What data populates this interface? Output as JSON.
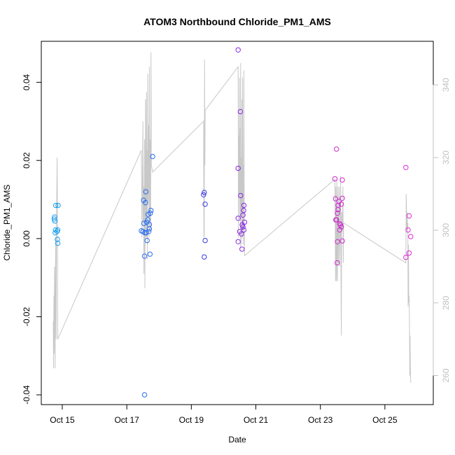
{
  "chart_data": {
    "type": "scatter",
    "title": "ATOM3 Northbound Chloride_PM1_AMS",
    "xlabel": "Date",
    "ylabel": "Chloride_PM1_AMS",
    "xlim": [
      14.35,
      26.5
    ],
    "ylim": [
      -0.0425,
      0.0505
    ],
    "y2lim": [
      252,
      352
    ],
    "x_ticks": [
      {
        "value": 15,
        "label": "Oct 15"
      },
      {
        "value": 17,
        "label": "Oct 17"
      },
      {
        "value": 19,
        "label": "Oct 19"
      },
      {
        "value": 21,
        "label": "Oct 21"
      },
      {
        "value": 23,
        "label": "Oct 23"
      },
      {
        "value": 25,
        "label": "Oct 25"
      }
    ],
    "y_ticks": [
      {
        "value": -0.04,
        "label": "-0.04"
      },
      {
        "value": -0.02,
        "label": "-0.02"
      },
      {
        "value": 0.0,
        "label": "0.00"
      },
      {
        "value": 0.02,
        "label": "0.02"
      },
      {
        "value": 0.04,
        "label": "0.04"
      }
    ],
    "y2_ticks": [
      {
        "value": 260,
        "label": "260"
      },
      {
        "value": 280,
        "label": "280"
      },
      {
        "value": 300,
        "label": "300"
      },
      {
        "value": 320,
        "label": "320"
      },
      {
        "value": 340,
        "label": "340"
      }
    ],
    "colors": {
      "line": "#c8c8c8",
      "axis": "#000000",
      "right_axis": "#c0c0c0"
    },
    "points": [
      [
        14.75,
        0.005,
        "#1aa0f0"
      ],
      [
        14.76,
        0.0055,
        "#1aa0f0"
      ],
      [
        14.77,
        0.0045,
        "#1aa0f0"
      ],
      [
        14.78,
        0.0015,
        "#1aa0f0"
      ],
      [
        14.79,
        0.0022,
        "#1aa0f0"
      ],
      [
        14.8,
        0.0085,
        "#1aa0f0"
      ],
      [
        14.84,
        0.0018,
        "#1aa0f0"
      ],
      [
        14.85,
        -0.0002,
        "#1aa0f0"
      ],
      [
        14.86,
        -0.0012,
        "#1aa0f0"
      ],
      [
        14.87,
        0.0085,
        "#1aa0f0"
      ],
      [
        14.86,
        0.0022,
        "#1aa0f0"
      ],
      [
        17.45,
        0.002,
        "#2a6ef0"
      ],
      [
        17.5,
        0.0018,
        "#2a6ef0"
      ],
      [
        17.52,
        0.0098,
        "#2a6ef0"
      ],
      [
        17.53,
        0.0039,
        "#2a6ef0"
      ],
      [
        17.55,
        -0.0045,
        "#2a6ef0"
      ],
      [
        17.55,
        -0.04,
        "#2a6ef0"
      ],
      [
        17.56,
        0.0015,
        "#2a6ef0"
      ],
      [
        17.58,
        0.0092,
        "#2a6ef0"
      ],
      [
        17.59,
        0.012,
        "#2a6ef0"
      ],
      [
        17.6,
        0.0015,
        "#2a6ef0"
      ],
      [
        17.62,
        0.0042,
        "#2a6ef0"
      ],
      [
        17.63,
        -0.0005,
        "#2a6ef0"
      ],
      [
        17.65,
        0.0048,
        "#2a6ef0"
      ],
      [
        17.66,
        0.0062,
        "#2a6ef0"
      ],
      [
        17.68,
        0.0018,
        "#2a6ef0"
      ],
      [
        17.7,
        0.0036,
        "#2a6ef0"
      ],
      [
        17.7,
        0.0025,
        "#2a6ef0"
      ],
      [
        17.72,
        -0.004,
        "#2a6ef0"
      ],
      [
        17.73,
        0.0065,
        "#2a6ef0"
      ],
      [
        17.75,
        0.0072,
        "#2a6ef0"
      ],
      [
        17.8,
        0.021,
        "#2a6ef0"
      ],
      [
        19.38,
        0.0112,
        "#3a38e8"
      ],
      [
        19.4,
        0.0118,
        "#3a38e8"
      ],
      [
        19.4,
        -0.0047,
        "#3a38e8"
      ],
      [
        19.43,
        -0.0005,
        "#3a38e8"
      ],
      [
        19.43,
        0.0088,
        "#3a38e8"
      ],
      [
        20.45,
        0.0483,
        "#8a2ae0"
      ],
      [
        20.45,
        0.018,
        "#8a2ae0"
      ],
      [
        20.45,
        0.0052,
        "#8a2ae0"
      ],
      [
        20.45,
        -0.0008,
        "#8a2ae0"
      ],
      [
        20.5,
        0.0018,
        "#8a2ae0"
      ],
      [
        20.52,
        0.0325,
        "#8a2ae0"
      ],
      [
        20.53,
        0.011,
        "#8a2ae0"
      ],
      [
        20.55,
        0.0012,
        "#8a2ae0"
      ],
      [
        20.57,
        -0.0027,
        "#8a2ae0"
      ],
      [
        20.58,
        0.0035,
        "#8a2ae0"
      ],
      [
        20.6,
        0.006,
        "#8a2ae0"
      ],
      [
        20.6,
        0.003,
        "#8a2ae0"
      ],
      [
        20.62,
        0.0072,
        "#8a2ae0"
      ],
      [
        20.63,
        0.0085,
        "#8a2ae0"
      ],
      [
        20.65,
        0.0042,
        "#8a2ae0"
      ],
      [
        20.63,
        0.0022,
        "#8a2ae0"
      ],
      [
        23.45,
        0.0153,
        "#d02ad0"
      ],
      [
        23.47,
        0.0102,
        "#d02ad0"
      ],
      [
        23.48,
        0.0048,
        "#d02ad0"
      ],
      [
        23.5,
        0.0048,
        "#d02ad0"
      ],
      [
        23.5,
        0.0229,
        "#d02ad0"
      ],
      [
        23.52,
        -0.0062,
        "#d02ad0"
      ],
      [
        23.53,
        0.0065,
        "#d02ad0"
      ],
      [
        23.53,
        -0.0008,
        "#d02ad0"
      ],
      [
        23.55,
        0.0074,
        "#d02ad0"
      ],
      [
        23.55,
        0.0085,
        "#d02ad0"
      ],
      [
        23.58,
        0.0095,
        "#d02ad0"
      ],
      [
        23.6,
        0.0038,
        "#d02ad0"
      ],
      [
        23.6,
        0.0022,
        "#d02ad0"
      ],
      [
        23.62,
        0.0035,
        "#d02ad0"
      ],
      [
        23.65,
        0.003,
        "#d02ad0"
      ],
      [
        23.65,
        0.0088,
        "#d02ad0"
      ],
      [
        23.68,
        0.015,
        "#d02ad0"
      ],
      [
        23.68,
        0.0103,
        "#d02ad0"
      ],
      [
        23.68,
        -0.0006,
        "#d02ad0"
      ],
      [
        25.65,
        0.0182,
        "#e02ad8"
      ],
      [
        25.65,
        -0.0048,
        "#e02ad8"
      ],
      [
        25.72,
        0.0022,
        "#e02ad8"
      ],
      [
        25.75,
        0.0058,
        "#e02ad8"
      ],
      [
        25.75,
        -0.0037,
        "#e02ad8"
      ],
      [
        25.8,
        0.0005,
        "#e02ad8"
      ]
    ],
    "line_series": [
      [
        14.72,
        275
      ],
      [
        14.73,
        262
      ],
      [
        14.74,
        282
      ],
      [
        14.75,
        266
      ],
      [
        14.76,
        290
      ],
      [
        14.77,
        280
      ],
      [
        14.78,
        262
      ],
      [
        14.79,
        290
      ],
      [
        14.8,
        298
      ],
      [
        14.81,
        270
      ],
      [
        14.82,
        300
      ],
      [
        14.83,
        310
      ],
      [
        14.84,
        320
      ],
      [
        14.85,
        305
      ],
      [
        14.86,
        270
      ],
      [
        17.45,
        322
      ],
      [
        17.47,
        298
      ],
      [
        17.48,
        310
      ],
      [
        17.5,
        330
      ],
      [
        17.51,
        302
      ],
      [
        17.52,
        312
      ],
      [
        17.53,
        288
      ],
      [
        17.55,
        325
      ],
      [
        17.56,
        284
      ],
      [
        17.58,
        336
      ],
      [
        17.59,
        305
      ],
      [
        17.6,
        298
      ],
      [
        17.61,
        338
      ],
      [
        17.62,
        298
      ],
      [
        17.63,
        322
      ],
      [
        17.64,
        292
      ],
      [
        17.65,
        343
      ],
      [
        17.66,
        308
      ],
      [
        17.68,
        329
      ],
      [
        17.69,
        298
      ],
      [
        17.7,
        345
      ],
      [
        17.71,
        312
      ],
      [
        17.72,
        300
      ],
      [
        17.73,
        325
      ],
      [
        17.74,
        300
      ],
      [
        17.75,
        349
      ],
      [
        17.76,
        318
      ],
      [
        17.8,
        316
      ],
      [
        19.38,
        330
      ],
      [
        19.39,
        298
      ],
      [
        19.4,
        299
      ],
      [
        19.41,
        347
      ],
      [
        19.42,
        318
      ],
      [
        19.43,
        333
      ],
      [
        20.45,
        345
      ],
      [
        20.46,
        298
      ],
      [
        20.47,
        326
      ],
      [
        20.48,
        310
      ],
      [
        20.49,
        342
      ],
      [
        20.5,
        303
      ],
      [
        20.51,
        328
      ],
      [
        20.52,
        295
      ],
      [
        20.53,
        346
      ],
      [
        20.54,
        305
      ],
      [
        20.55,
        320
      ],
      [
        20.56,
        296
      ],
      [
        20.57,
        336
      ],
      [
        20.58,
        298
      ],
      [
        20.59,
        342
      ],
      [
        20.6,
        300
      ],
      [
        20.61,
        318
      ],
      [
        20.62,
        296
      ],
      [
        20.63,
        344
      ],
      [
        20.64,
        302
      ],
      [
        20.65,
        293
      ],
      [
        23.45,
        314
      ],
      [
        23.46,
        300
      ],
      [
        23.47,
        286
      ],
      [
        23.48,
        312
      ],
      [
        23.49,
        296
      ],
      [
        23.5,
        286
      ],
      [
        23.51,
        314
      ],
      [
        23.52,
        296
      ],
      [
        23.53,
        286
      ],
      [
        23.54,
        303
      ],
      [
        23.55,
        312
      ],
      [
        23.56,
        291
      ],
      [
        23.57,
        298
      ],
      [
        23.58,
        306
      ],
      [
        23.59,
        312
      ],
      [
        23.6,
        290
      ],
      [
        23.61,
        300
      ],
      [
        23.62,
        298
      ],
      [
        23.63,
        315
      ],
      [
        23.64,
        283
      ],
      [
        23.65,
        271
      ],
      [
        23.66,
        305
      ],
      [
        23.67,
        301
      ],
      [
        23.68,
        300
      ],
      [
        23.69,
        305
      ],
      [
        23.7,
        312
      ],
      [
        23.71,
        291
      ],
      [
        23.72,
        302
      ],
      [
        25.65,
        291
      ],
      [
        25.66,
        310
      ],
      [
        25.67,
        306
      ],
      [
        25.68,
        300
      ],
      [
        25.69,
        305
      ],
      [
        25.7,
        300
      ],
      [
        25.71,
        302
      ],
      [
        25.72,
        279
      ],
      [
        25.73,
        296
      ],
      [
        25.74,
        280
      ],
      [
        25.75,
        282
      ],
      [
        25.76,
        276
      ],
      [
        25.77,
        260
      ],
      [
        25.78,
        271
      ],
      [
        25.79,
        262
      ],
      [
        25.8,
        258
      ]
    ]
  }
}
